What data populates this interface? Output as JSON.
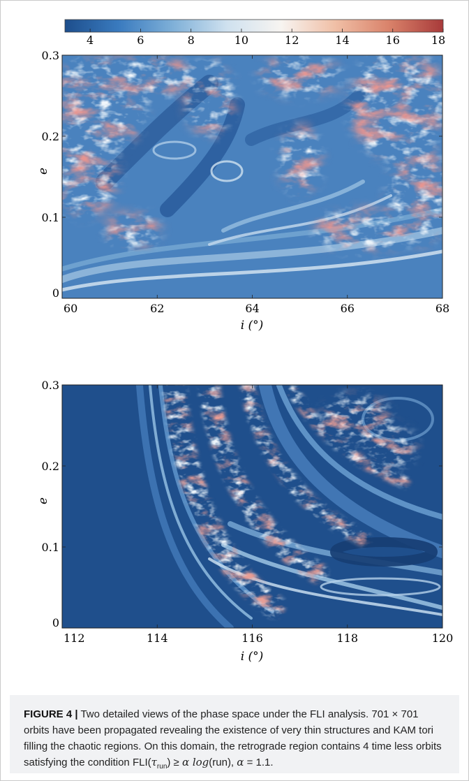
{
  "colorbar": {
    "min": 3,
    "max": 18,
    "ticks": [
      "4",
      "6",
      "8",
      "10",
      "12",
      "14",
      "16",
      "18"
    ],
    "colormap": "RdBu_r",
    "colors": [
      "#1d4e8c",
      "#3a7bbf",
      "#7fb0d8",
      "#cfe1ef",
      "#f7f4f1",
      "#f0bfa6",
      "#d9826a",
      "#a83a3a"
    ]
  },
  "chart_data": [
    {
      "type": "heatmap",
      "description_visible": "FLI map, prograde region",
      "xlabel": "i (°)",
      "ylabel": "e",
      "xlim": [
        60,
        68
      ],
      "ylim": [
        0,
        0.3
      ],
      "xticks": [
        "60",
        "62",
        "64",
        "66",
        "68"
      ],
      "yticks": [
        "0",
        "0.1",
        "0.2",
        "0.3"
      ],
      "grid": "resolution 701 x 701",
      "dominant_structure": "chaotic red filaments at left and upper-right, regular blue tori in center and bottom"
    },
    {
      "type": "heatmap",
      "xlabel": "i (°)",
      "ylabel": "e",
      "xlim": [
        112,
        120
      ],
      "ylim": [
        0,
        0.3
      ],
      "xticks": [
        "112",
        "114",
        "116",
        "118",
        "120"
      ],
      "yticks": [
        "0",
        "0.1",
        "0.2",
        "0.3"
      ],
      "dominant_structure": "regular blue on the left, curved chaotic band sweeping from top-center down to bottom-right"
    }
  ],
  "caption": {
    "label": "FIGURE 4 |",
    "text1": " Two detailed views of the phase space under the FLI analysis. 701 × 701 orbits have been propagated revealing the existence of very thin structures and KAM tori filling the chaotic regions. On this domain, the retrograde region contains 4 time less orbits satisfying the condition ",
    "fli": "FLI(",
    "tau": "τ",
    "run_sub": "run",
    "cond": ") ≥ ",
    "alpha_log": "α log",
    "run_arg": "(run), ",
    "alpha_eq": "α",
    "alpha_val": " = 1.1."
  }
}
